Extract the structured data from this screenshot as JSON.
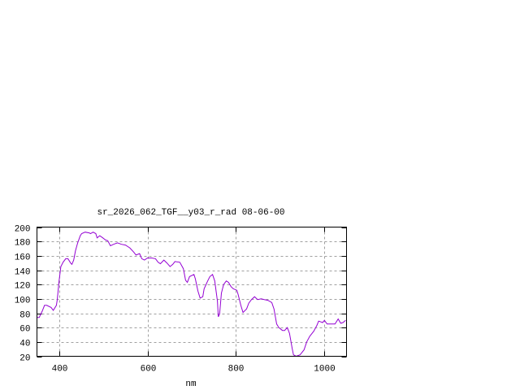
{
  "chart_data": {
    "type": "line",
    "title": "sr_2026_062_TGF__y03_r_rad 08-06-00",
    "xlabel": "nm",
    "ylabel": "",
    "xlim": [
      350,
      1050
    ],
    "ylim": [
      20,
      200
    ],
    "xticks": [
      400,
      600,
      800,
      1000
    ],
    "yticks": [
      20,
      40,
      60,
      80,
      100,
      120,
      140,
      160,
      180,
      200
    ],
    "grid": true,
    "legend": "none",
    "series": [
      {
        "color": "#9400d3",
        "x": [
          350,
          355,
          362,
          367,
          372,
          382,
          387,
          394,
          396,
          400,
          404,
          409,
          415,
          420,
          426,
          429,
          433,
          437,
          442,
          448,
          451,
          459,
          468,
          471,
          477,
          483,
          486,
          492,
          499,
          505,
          510,
          516,
          523,
          532,
          541,
          550,
          560,
          569,
          574,
          582,
          587,
          593,
          600,
          609,
          618,
          624,
          629,
          637,
          644,
          651,
          657,
          662,
          673,
          681,
          686,
          690,
          695,
          705,
          708,
          714,
          719,
          725,
          728,
          736,
          741,
          747,
          752,
          758,
          760,
          763,
          767,
          772,
          778,
          783,
          789,
          794,
          802,
          805,
          811,
          816,
          824,
          829,
          835,
          842,
          849,
          857,
          864,
          872,
          881,
          886,
          892,
          897,
          905,
          910,
          916,
          921,
          927,
          930,
          936,
          945,
          954,
          960,
          967,
          976,
          983,
          987,
          996,
          1000,
          1006,
          1018,
          1024,
          1031,
          1037,
          1042,
          1048
        ],
        "y": [
          74,
          74,
          83,
          91,
          91,
          88,
          84,
          91,
          99,
          125,
          145,
          151,
          156,
          156,
          150,
          148,
          154,
          167,
          178,
          188,
          191,
          193,
          192,
          191,
          193,
          191,
          185,
          188,
          185,
          182,
          181,
          174,
          176,
          178,
          176,
          175,
          171,
          165,
          161,
          163,
          156,
          154,
          157,
          157,
          156,
          151,
          149,
          154,
          150,
          145,
          148,
          152,
          151,
          142,
          126,
          123,
          131,
          134,
          128,
          111,
          101,
          103,
          114,
          125,
          131,
          134,
          125,
          97,
          75,
          79,
          108,
          120,
          125,
          123,
          117,
          114,
          112,
          106,
          91,
          81,
          86,
          94,
          99,
          103,
          99,
          100,
          99,
          98,
          95,
          86,
          65,
          60,
          56,
          56,
          60,
          52,
          31,
          22,
          20,
          22,
          29,
          40,
          48,
          55,
          63,
          69,
          67,
          70,
          65,
          65,
          65,
          72,
          66,
          67,
          70
        ]
      }
    ]
  }
}
